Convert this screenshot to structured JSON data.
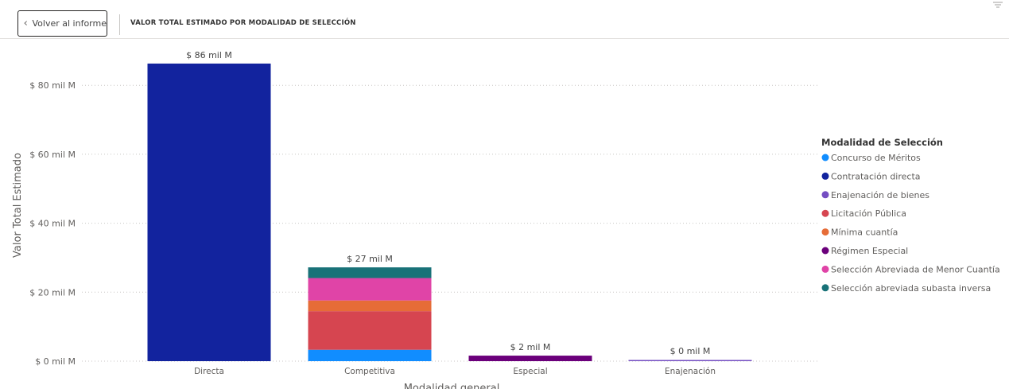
{
  "header": {
    "back_label": "Volver al informe",
    "title": "VALOR TOTAL ESTIMADO POR MODALIDAD DE SELECCIÓN"
  },
  "icons": {
    "back": "chevron-left-icon",
    "filter": "filter-icon"
  },
  "chart_data": {
    "type": "bar",
    "stacked": true,
    "categories": [
      "Directa",
      "Competitiva",
      "Especial",
      "Enajenación"
    ],
    "xlabel": "Modalidad general",
    "ylabel": "Valor Total Estimado",
    "ylim": [
      0,
      86
    ],
    "yticks": [
      0,
      20,
      40,
      60,
      80
    ],
    "ytick_labels": [
      "$ 0 mil M",
      "$ 20 mil M",
      "$ 40 mil M",
      "$ 60 mil M",
      "$ 80 mil M"
    ],
    "totals": [
      86,
      27,
      2,
      0
    ],
    "total_labels": [
      "$ 86 mil M",
      "$ 27 mil M",
      "$ 2 mil M",
      "$ 0 mil M"
    ],
    "grid": true,
    "legend_title": "Modalidad de Selección",
    "legend_position": "right",
    "series": [
      {
        "name": "Concurso de Méritos",
        "color": "#118DFF",
        "values": [
          0,
          3.3,
          0,
          0
        ]
      },
      {
        "name": "Contratación directa",
        "color": "#12239E",
        "values": [
          86.3,
          0,
          0,
          0
        ]
      },
      {
        "name": "Enajenación de bienes",
        "color": "#6B007B",
        "values": [
          0,
          0,
          0,
          0
        ]
      },
      {
        "name": "Licitación Pública",
        "color": "#D64550",
        "values": [
          0,
          11.2,
          0,
          0
        ]
      },
      {
        "name": "Mínima cuantía",
        "color": "#E66C37",
        "values": [
          0,
          3.1,
          0,
          0
        ]
      },
      {
        "name": "Régimen Especial",
        "color": "#6B007B",
        "values": [
          0,
          0,
          1.6,
          0
        ]
      },
      {
        "name": "Selección Abreviada de Menor Cuantía",
        "color": "#E044A7",
        "values": [
          0,
          6.5,
          0,
          0
        ]
      },
      {
        "name": "Selección abreviada subasta inversa",
        "color": "#197278",
        "values": [
          0,
          3.1,
          0,
          0
        ]
      }
    ],
    "enajenacion_color": "#744EC2",
    "legend_colors": [
      "#118DFF",
      "#12239E",
      "#744EC2",
      "#D64550",
      "#E66C37",
      "#6B007B",
      "#E044A7",
      "#197278"
    ]
  }
}
